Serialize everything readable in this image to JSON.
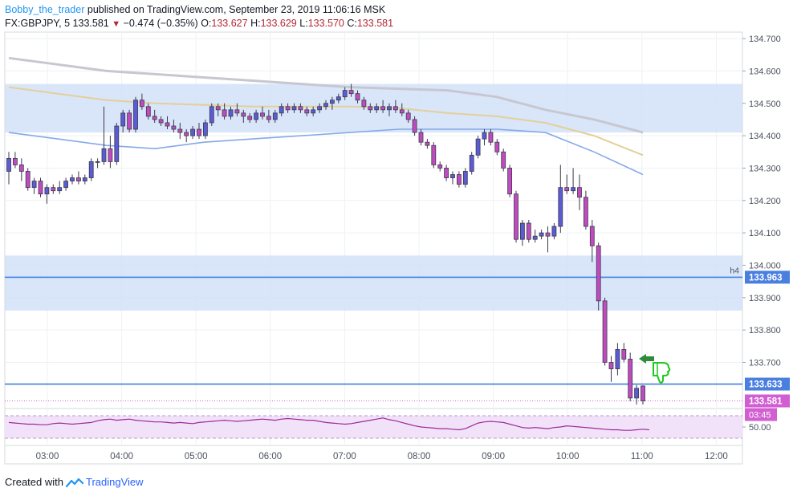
{
  "header": {
    "author": "Bobby_the_trader",
    "published_text": "published on TradingView.com, September 23, 2019 11:06:16 MSK",
    "symbol": "FX:GBPJPY, 5",
    "last": "133.581",
    "change": "−0.474 (−0.35%)",
    "o_label": "O:",
    "o_value": "133.627",
    "h_label": "H:",
    "h_value": "133.629",
    "l_label": "L:",
    "l_value": "133.570",
    "c_label": "C:",
    "c_value": "133.581"
  },
  "footer": {
    "created_with": "Created with",
    "brand": "TradingView"
  },
  "colors": {
    "up_candle": "#5b5bd6",
    "down_candle": "#c04bc0",
    "zone_fill": "#cfe0f8",
    "level_line": "#3f7fe0",
    "ma_grey": "#c7c7d0",
    "ma_tan": "#e3cf9a",
    "ma_blue": "#86a9e8",
    "rsi": "#9b2a9b",
    "rsi_band": "#f2e2f9",
    "price_label": "#d15fd1",
    "level_label": "#4a7fe0"
  },
  "chart_data": {
    "type": "candlestick",
    "symbol": "GBPJPY",
    "timeframe": "5",
    "x_ticks": [
      "03:00",
      "04:00",
      "05:00",
      "06:00",
      "07:00",
      "08:00",
      "09:00",
      "10:00",
      "11:00",
      "12:00"
    ],
    "y_ticks": [
      "134.700",
      "134.600",
      "134.500",
      "134.400",
      "134.300",
      "134.200",
      "134.100",
      "134.000",
      "133.900",
      "133.800",
      "133.700"
    ],
    "ylim": [
      133.56,
      134.72
    ],
    "candles_ohlc": [
      [
        134.29,
        134.35,
        134.25,
        134.33
      ],
      [
        134.33,
        134.35,
        134.3,
        134.31
      ],
      [
        134.31,
        134.33,
        134.26,
        134.29
      ],
      [
        134.29,
        134.3,
        134.23,
        134.24
      ],
      [
        134.24,
        134.27,
        134.22,
        134.26
      ],
      [
        134.26,
        134.27,
        134.21,
        134.22
      ],
      [
        134.22,
        134.25,
        134.19,
        134.24
      ],
      [
        134.24,
        134.25,
        134.22,
        134.23
      ],
      [
        134.23,
        134.26,
        134.22,
        134.24
      ],
      [
        134.24,
        134.27,
        134.23,
        134.26
      ],
      [
        134.26,
        134.28,
        134.25,
        134.27
      ],
      [
        134.27,
        134.29,
        134.25,
        134.26
      ],
      [
        134.26,
        134.28,
        134.25,
        134.27
      ],
      [
        134.27,
        134.33,
        134.26,
        134.32
      ],
      [
        134.32,
        134.33,
        134.3,
        134.32
      ],
      [
        134.32,
        134.49,
        134.31,
        134.36
      ],
      [
        134.36,
        134.4,
        134.3,
        134.32
      ],
      [
        134.32,
        134.44,
        134.31,
        134.43
      ],
      [
        134.43,
        134.48,
        134.41,
        134.47
      ],
      [
        134.47,
        134.48,
        134.41,
        134.42
      ],
      [
        134.42,
        134.52,
        134.41,
        134.51
      ],
      [
        134.51,
        134.53,
        134.48,
        134.49
      ],
      [
        134.49,
        134.5,
        134.45,
        134.46
      ],
      [
        134.46,
        134.48,
        134.44,
        134.45
      ],
      [
        134.45,
        134.46,
        134.43,
        134.44
      ],
      [
        134.44,
        134.46,
        134.42,
        134.43
      ],
      [
        134.43,
        134.45,
        134.41,
        134.42
      ],
      [
        134.42,
        134.44,
        134.39,
        134.41
      ],
      [
        134.41,
        134.42,
        134.38,
        134.4
      ],
      [
        134.4,
        134.43,
        134.39,
        134.42
      ],
      [
        134.42,
        134.44,
        134.39,
        134.4
      ],
      [
        134.4,
        134.45,
        134.39,
        134.44
      ],
      [
        134.44,
        134.5,
        134.43,
        134.49
      ],
      [
        134.49,
        134.5,
        134.46,
        134.48
      ],
      [
        134.48,
        134.5,
        134.45,
        134.46
      ],
      [
        134.46,
        134.49,
        134.45,
        134.48
      ],
      [
        134.48,
        134.5,
        134.46,
        134.47
      ],
      [
        134.47,
        134.48,
        134.44,
        134.46
      ],
      [
        134.46,
        134.47,
        134.44,
        134.45
      ],
      [
        134.45,
        134.48,
        134.44,
        134.47
      ],
      [
        134.47,
        134.49,
        134.45,
        134.46
      ],
      [
        134.46,
        134.48,
        134.44,
        134.45
      ],
      [
        134.45,
        134.48,
        134.44,
        134.47
      ],
      [
        134.47,
        134.5,
        134.46,
        134.49
      ],
      [
        134.49,
        134.5,
        134.47,
        134.48
      ],
      [
        134.48,
        134.5,
        134.47,
        134.49
      ],
      [
        134.49,
        134.5,
        134.47,
        134.48
      ],
      [
        134.48,
        134.49,
        134.46,
        134.47
      ],
      [
        134.47,
        134.49,
        134.46,
        134.48
      ],
      [
        134.48,
        134.5,
        134.47,
        134.49
      ],
      [
        134.49,
        134.51,
        134.48,
        134.5
      ],
      [
        134.5,
        134.52,
        134.48,
        134.51
      ],
      [
        134.51,
        134.53,
        134.5,
        134.52
      ],
      [
        134.52,
        134.55,
        134.51,
        134.54
      ],
      [
        134.54,
        134.56,
        134.52,
        134.53
      ],
      [
        134.53,
        134.54,
        134.5,
        134.51
      ],
      [
        134.51,
        134.52,
        134.48,
        134.49
      ],
      [
        134.49,
        134.5,
        134.47,
        134.48
      ],
      [
        134.48,
        134.5,
        134.47,
        134.49
      ],
      [
        134.49,
        134.51,
        134.47,
        134.48
      ],
      [
        134.48,
        134.5,
        134.46,
        134.49
      ],
      [
        134.49,
        134.51,
        134.47,
        134.48
      ],
      [
        134.48,
        134.5,
        134.46,
        134.47
      ],
      [
        134.47,
        134.48,
        134.44,
        134.45
      ],
      [
        134.45,
        134.46,
        134.4,
        134.41
      ],
      [
        134.41,
        134.42,
        134.37,
        134.38
      ],
      [
        134.38,
        134.39,
        134.36,
        134.37
      ],
      [
        134.37,
        134.38,
        134.3,
        134.31
      ],
      [
        134.31,
        134.32,
        134.29,
        134.3
      ],
      [
        134.3,
        134.31,
        134.26,
        134.27
      ],
      [
        134.27,
        134.29,
        134.25,
        134.28
      ],
      [
        134.28,
        134.29,
        134.24,
        134.25
      ],
      [
        134.25,
        134.3,
        134.24,
        134.29
      ],
      [
        134.29,
        134.35,
        134.28,
        134.34
      ],
      [
        134.34,
        134.4,
        134.33,
        134.39
      ],
      [
        134.39,
        134.42,
        134.37,
        134.41
      ],
      [
        134.41,
        134.42,
        134.37,
        134.38
      ],
      [
        134.38,
        134.39,
        134.34,
        134.35
      ],
      [
        134.35,
        134.36,
        134.29,
        134.3
      ],
      [
        134.3,
        134.31,
        134.21,
        134.22
      ],
      [
        134.22,
        134.23,
        134.07,
        134.08
      ],
      [
        134.08,
        134.14,
        134.06,
        134.13
      ],
      [
        134.13,
        134.14,
        134.07,
        134.08
      ],
      [
        134.08,
        134.11,
        134.07,
        134.09
      ],
      [
        134.09,
        134.11,
        134.08,
        134.1
      ],
      [
        134.1,
        134.12,
        134.04,
        134.09
      ],
      [
        134.09,
        134.13,
        134.08,
        134.12
      ],
      [
        134.12,
        134.31,
        134.1,
        134.24
      ],
      [
        134.24,
        134.28,
        134.22,
        134.23
      ],
      [
        134.23,
        134.3,
        134.22,
        134.24
      ],
      [
        134.24,
        134.28,
        134.17,
        134.21
      ],
      [
        134.21,
        134.23,
        134.11,
        134.12
      ],
      [
        134.12,
        134.14,
        134.01,
        134.06
      ],
      [
        134.06,
        134.07,
        133.86,
        133.89
      ],
      [
        133.89,
        133.9,
        133.69,
        133.7
      ],
      [
        133.7,
        133.72,
        133.64,
        133.68
      ],
      [
        133.68,
        133.76,
        133.66,
        133.74
      ],
      [
        133.74,
        133.76,
        133.7,
        133.71
      ],
      [
        133.71,
        133.73,
        133.58,
        133.59
      ],
      [
        133.59,
        133.63,
        133.57,
        133.62
      ],
      [
        133.627,
        133.629,
        133.57,
        133.581
      ]
    ],
    "moving_averages": [
      {
        "color": "grey",
        "y": [
          134.64,
          134.62,
          134.6,
          134.59,
          134.58,
          134.57,
          134.56,
          134.55,
          134.545,
          134.54,
          134.52,
          134.48,
          134.45,
          134.41
        ]
      },
      {
        "color": "tan",
        "y": [
          134.55,
          134.53,
          134.51,
          134.5,
          134.495,
          134.49,
          134.49,
          134.49,
          134.485,
          134.47,
          134.46,
          134.44,
          134.4,
          134.34
        ]
      },
      {
        "color": "blue",
        "y": [
          134.41,
          134.39,
          134.37,
          134.36,
          134.38,
          134.39,
          134.4,
          134.41,
          134.42,
          134.42,
          134.42,
          134.41,
          134.35,
          134.28
        ]
      }
    ],
    "zones": [
      [
        134.41,
        134.56
      ],
      [
        133.86,
        134.03
      ]
    ],
    "levels": [
      {
        "price": 133.963,
        "label": "133.963",
        "tag": "h4"
      },
      {
        "price": 133.633,
        "label": "133.633",
        "tag": ""
      }
    ],
    "current_price": {
      "label": "133.581",
      "countdown": "03:45"
    },
    "rsi": {
      "tick": "50.00",
      "values": [
        58,
        57,
        56,
        55,
        55,
        54,
        54,
        56,
        57,
        56,
        55,
        56,
        57,
        58,
        61,
        63,
        64,
        62,
        63,
        64,
        62,
        61,
        60,
        59,
        59,
        58,
        57,
        58,
        57,
        56,
        58,
        59,
        60,
        61,
        62,
        61,
        60,
        61,
        62,
        63,
        64,
        63,
        62,
        64,
        65,
        64,
        63,
        62,
        62,
        60,
        58,
        57,
        56,
        55,
        56,
        58,
        60,
        62,
        64,
        66,
        63,
        61,
        58,
        55,
        52,
        50,
        49,
        48,
        47,
        47,
        46,
        45,
        47,
        52,
        57,
        59,
        60,
        59,
        58,
        55,
        52,
        49,
        48,
        49,
        48,
        47,
        49,
        50,
        52,
        51,
        50,
        49,
        48,
        47,
        46,
        45,
        45,
        44,
        44,
        45,
        46,
        45
      ]
    }
  }
}
